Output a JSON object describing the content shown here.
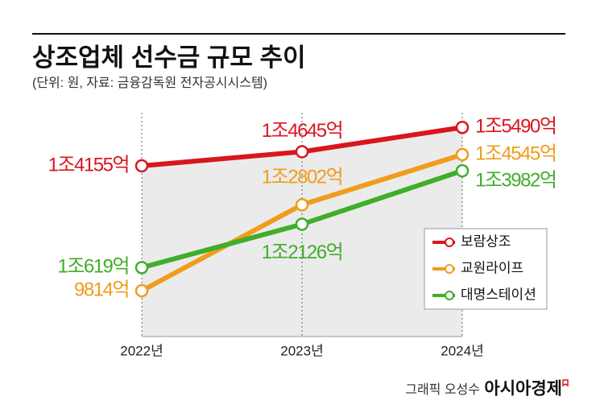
{
  "chart_data": {
    "type": "line",
    "title": "상조업체 선수금 규모 추이",
    "subtitle": "(단위: 원, 자료: 금융감독원 전자공시시스템)",
    "categories": [
      "2022년",
      "2023년",
      "2024년"
    ],
    "series": [
      {
        "name": "보람상조",
        "color": "#d9161e",
        "values": [
          14155,
          14645,
          15490
        ],
        "value_labels": [
          "1조4155억",
          "1조4645억",
          "1조5490억"
        ]
      },
      {
        "name": "교원라이프",
        "color": "#f09c1c",
        "values": [
          9814,
          12802,
          14545
        ],
        "value_labels": [
          "9814억",
          "1조2802억",
          "1조4545억"
        ]
      },
      {
        "name": "대명스테이션",
        "color": "#3fae2a",
        "values": [
          10619,
          12126,
          13982
        ],
        "value_labels": [
          "1조619억",
          "1조2126억",
          "1조3982억"
        ]
      }
    ],
    "ylim": [
      8000,
      16000
    ],
    "legend": "right",
    "credit": "그래픽 오성수",
    "source": "아시아경제"
  }
}
